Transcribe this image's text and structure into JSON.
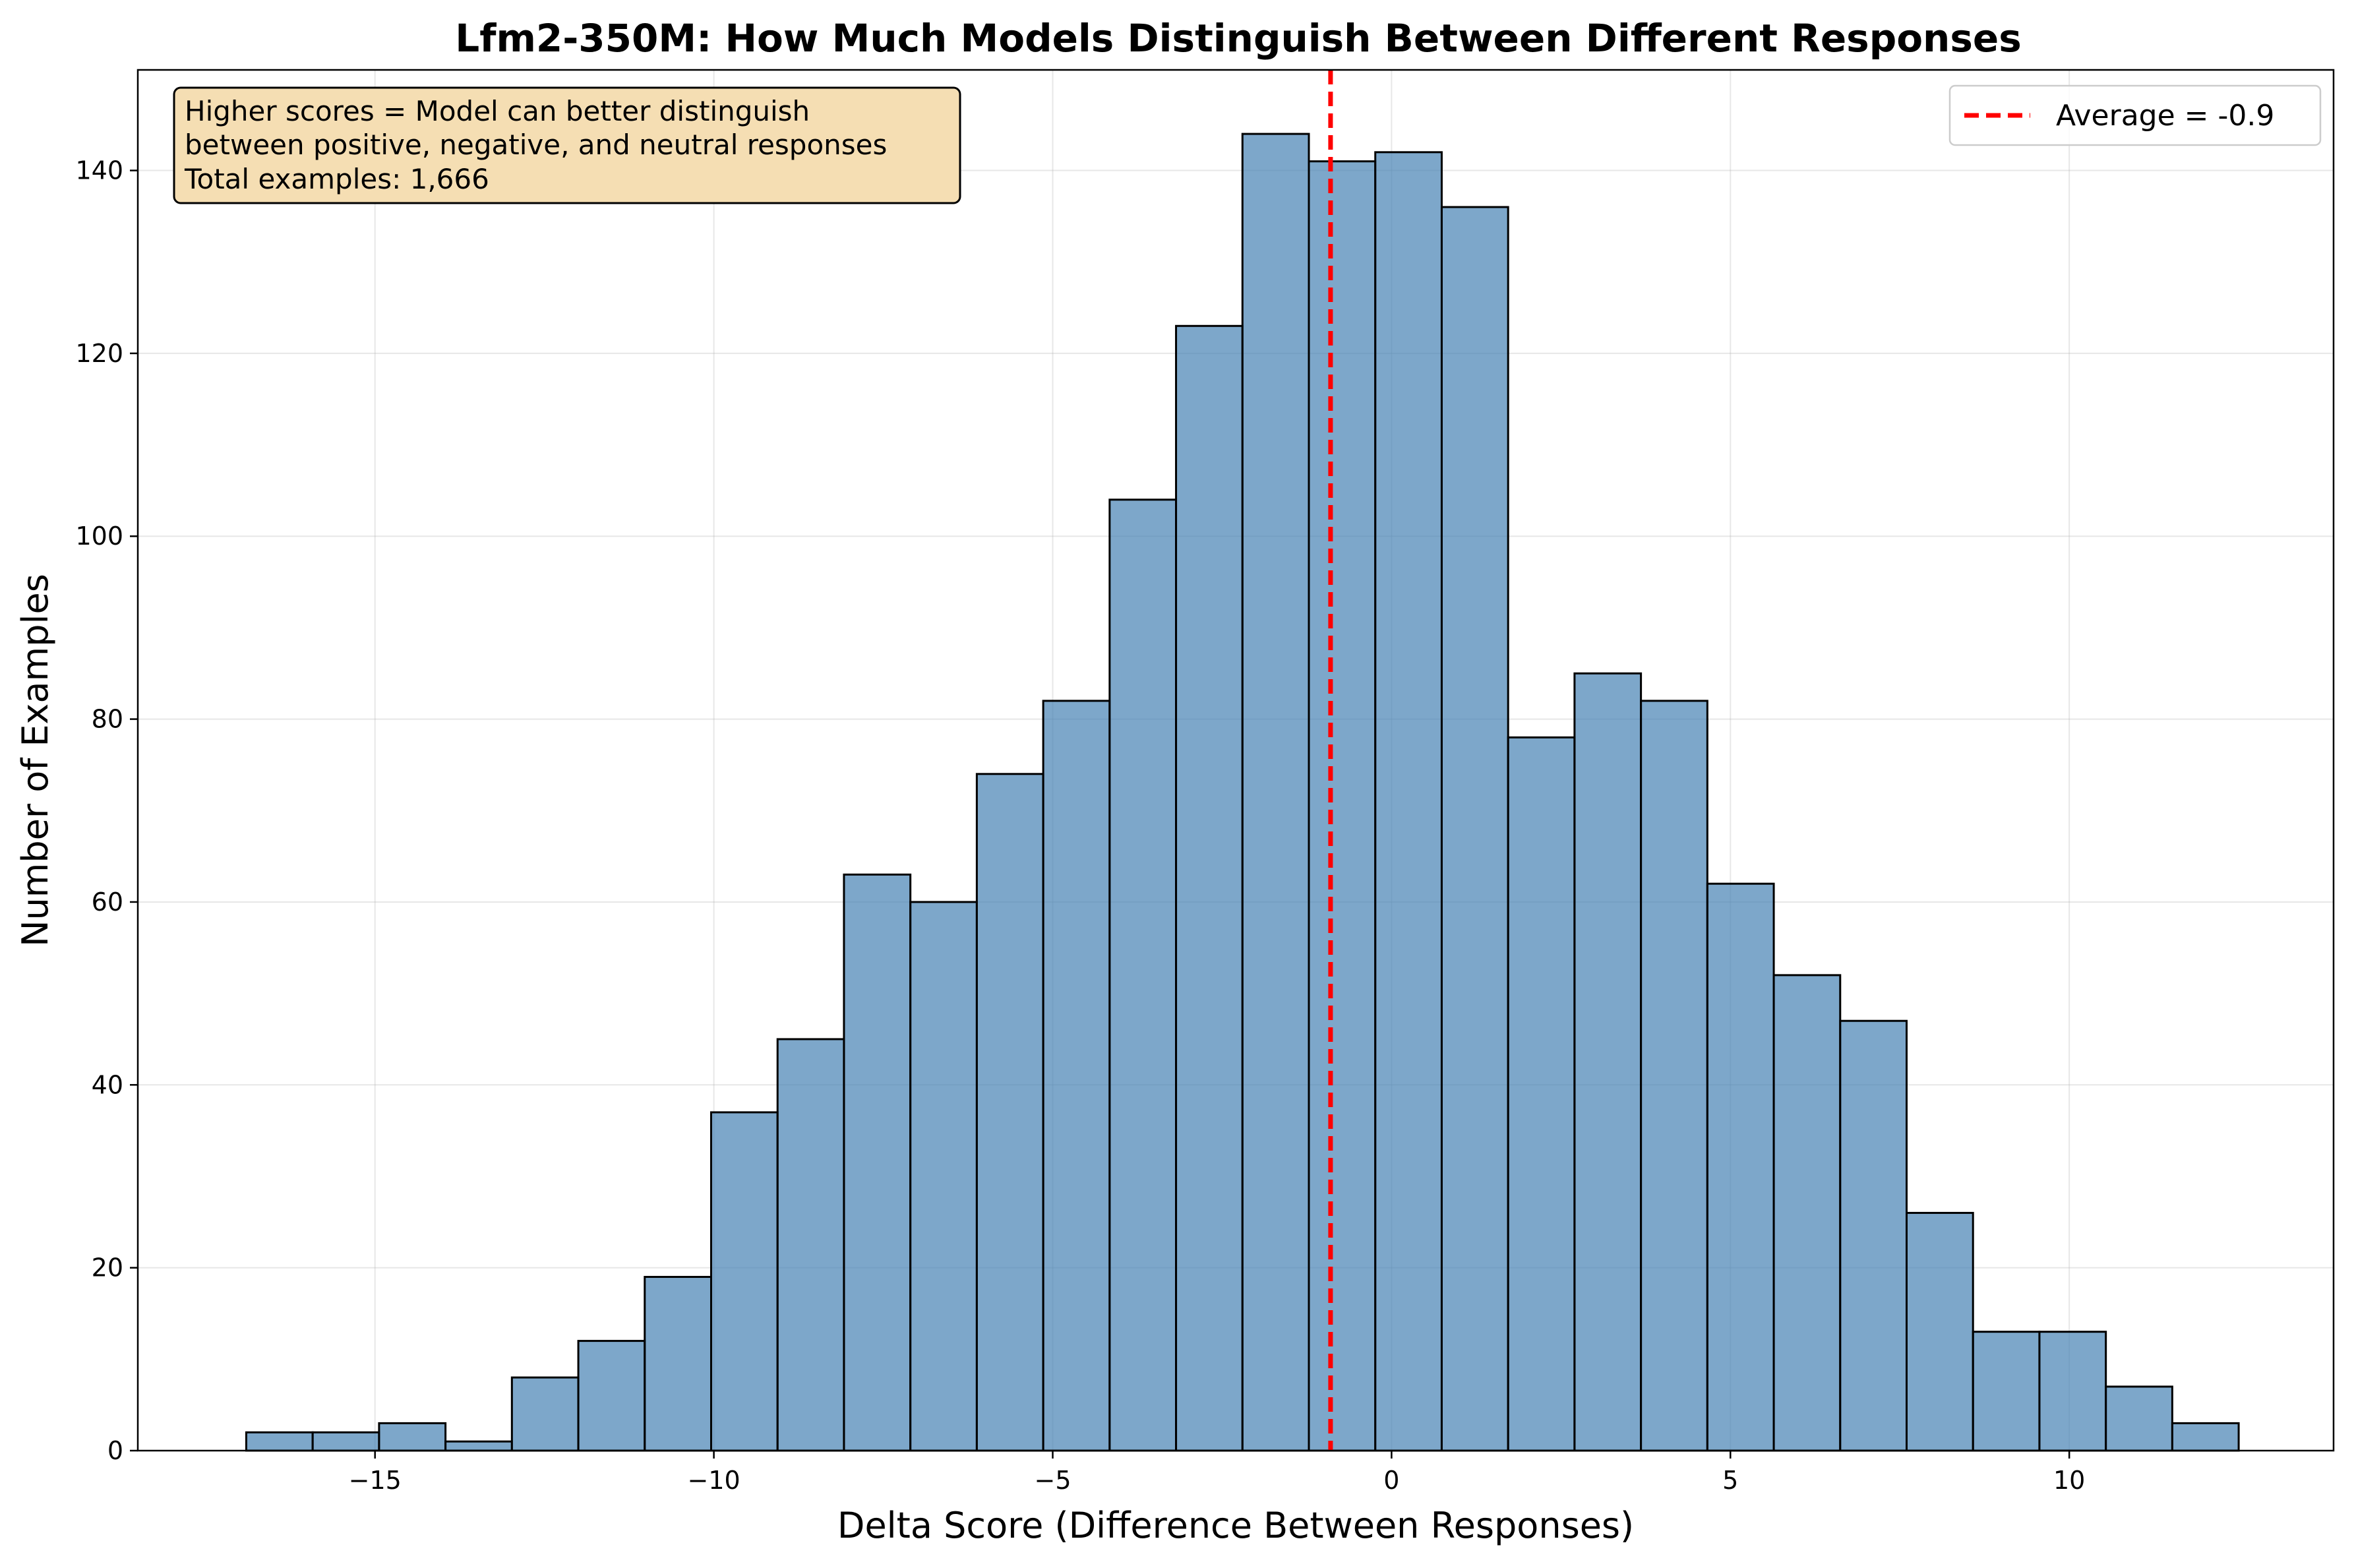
{
  "chart_data": {
    "type": "bar",
    "title": "Lfm2-350M: How Much Models Distinguish Between Different Responses",
    "xlabel": "Delta Score (Difference Between Responses)",
    "ylabel": "Number of Examples",
    "xlim": [
      -18.5,
      13.9
    ],
    "ylim": [
      0,
      151
    ],
    "grid": true,
    "legend_position": "top-right",
    "bins": {
      "start": -16.9,
      "width": 0.98
    },
    "values": [
      2,
      2,
      3,
      1,
      8,
      12,
      19,
      37,
      45,
      63,
      60,
      74,
      82,
      104,
      123,
      144,
      141,
      142,
      136,
      78,
      85,
      82,
      62,
      52,
      47,
      26,
      13,
      13,
      7,
      3
    ],
    "x_ticks": [
      -15,
      -10,
      -5,
      0,
      5,
      10
    ],
    "x_tick_labels": [
      "−15",
      "−10",
      "−5",
      "0",
      "5",
      "10"
    ],
    "y_ticks": [
      0,
      20,
      40,
      60,
      80,
      100,
      120,
      140
    ],
    "y_tick_labels": [
      "0",
      "20",
      "40",
      "60",
      "80",
      "100",
      "120",
      "140"
    ],
    "reference_line": {
      "x": -0.9,
      "label": "Average = -0.9",
      "color": "#ff0000",
      "style": "dashed"
    },
    "annotation": {
      "lines": [
        "Higher scores = Model can better distinguish",
        "between positive, negative, and neutral responses",
        "Total examples: 1,666"
      ]
    },
    "colors": {
      "bar_fill": "#4682b4",
      "bar_opacity": 0.7,
      "bar_edge": "#000000",
      "grid": "#b0b0b0",
      "annotation_fill": "#f5deb3"
    }
  }
}
